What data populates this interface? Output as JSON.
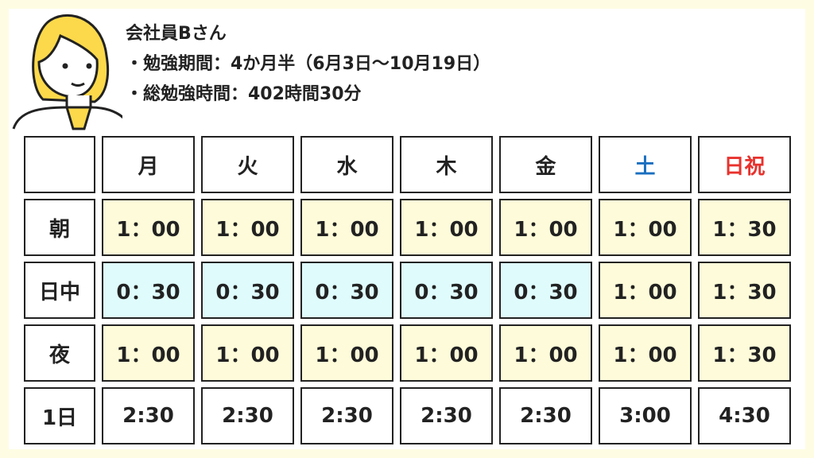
{
  "header": {
    "title": "会社員Bさん",
    "line1": "・勉強期間：4か月半（6月3日〜10月19日）",
    "line2": "・総勉強時間：402時間30分"
  },
  "colors": {
    "saturday": "#1a6fc0",
    "holiday": "#e8322d",
    "yellow_cell": "#fdfbd9",
    "cyan_cell": "#dffbfc"
  },
  "table": {
    "columns": [
      "",
      "月",
      "火",
      "水",
      "木",
      "金",
      "土",
      "日祝"
    ],
    "rows": [
      {
        "label": "朝",
        "values": [
          "1：00",
          "1：00",
          "1：00",
          "1：00",
          "1：00",
          "1：00",
          "1：30"
        ],
        "shade": [
          "y",
          "y",
          "y",
          "y",
          "y",
          "y",
          "y"
        ]
      },
      {
        "label": "日中",
        "values": [
          "0：30",
          "0：30",
          "0：30",
          "0：30",
          "0：30",
          "1：00",
          "1：30"
        ],
        "shade": [
          "c",
          "c",
          "c",
          "c",
          "c",
          "y",
          "y"
        ]
      },
      {
        "label": "夜",
        "values": [
          "1：00",
          "1：00",
          "1：00",
          "1：00",
          "1：00",
          "1：00",
          "1：30"
        ],
        "shade": [
          "y",
          "y",
          "y",
          "y",
          "y",
          "y",
          "y"
        ]
      },
      {
        "label": "1日",
        "values": [
          "2:30",
          "2:30",
          "2:30",
          "2:30",
          "2:30",
          "3:00",
          "4:30"
        ],
        "shade": [
          "",
          "",
          "",
          "",
          "",
          "",
          ""
        ]
      }
    ]
  }
}
